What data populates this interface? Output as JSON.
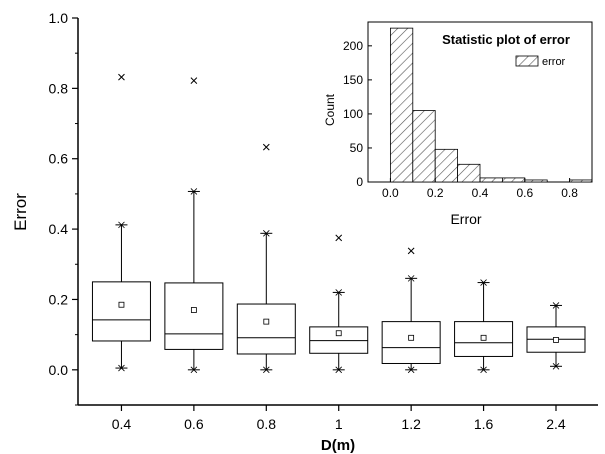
{
  "chart_data": [
    {
      "type": "box",
      "xlabel": "D(m)",
      "ylabel": "Error",
      "ylim": [
        -0.1,
        1.0
      ],
      "yticks": [
        "0.0",
        "0.2",
        "0.4",
        "0.6",
        "0.8",
        "1.0"
      ],
      "categories": [
        "0.4",
        "0.6",
        "0.8",
        "1",
        "1.2",
        "1.6",
        "2.4"
      ],
      "boxes": [
        {
          "min": 0.005,
          "q1": 0.082,
          "median": 0.142,
          "q3": 0.25,
          "max": 0.412,
          "mean": 0.185,
          "outliers": [
            0.832
          ]
        },
        {
          "min": 0.0,
          "q1": 0.058,
          "median": 0.102,
          "q3": 0.247,
          "max": 0.507,
          "mean": 0.17,
          "outliers": [
            0.822
          ]
        },
        {
          "min": 0.0,
          "q1": 0.045,
          "median": 0.091,
          "q3": 0.187,
          "max": 0.388,
          "mean": 0.137,
          "outliers": [
            0.633
          ]
        },
        {
          "min": 0.0,
          "q1": 0.047,
          "median": 0.083,
          "q3": 0.122,
          "max": 0.22,
          "mean": 0.104,
          "outliers": [
            0.375
          ]
        },
        {
          "min": 0.0,
          "q1": 0.018,
          "median": 0.063,
          "q3": 0.137,
          "max": 0.26,
          "mean": 0.091,
          "outliers": [
            0.338
          ]
        },
        {
          "min": 0.0,
          "q1": 0.038,
          "median": 0.077,
          "q3": 0.137,
          "max": 0.248,
          "mean": 0.091,
          "outliers": []
        },
        {
          "min": 0.01,
          "q1": 0.05,
          "median": 0.087,
          "q3": 0.122,
          "max": 0.183,
          "mean": 0.085,
          "outliers": []
        }
      ],
      "grid": false
    },
    {
      "type": "bar",
      "title": "Statistic plot of error",
      "xlabel": "Error",
      "ylabel": "Count",
      "xlim": [
        -0.1,
        0.9
      ],
      "ylim": [
        0,
        235
      ],
      "xticks": [
        "0.0",
        "0.2",
        "0.4",
        "0.6",
        "0.8"
      ],
      "yticks": [
        "0",
        "50",
        "100",
        "150",
        "200"
      ],
      "bin_width": 0.1,
      "bins": [
        0.0,
        0.1,
        0.2,
        0.3,
        0.4,
        0.5,
        0.6,
        0.7,
        0.8
      ],
      "values": [
        226,
        105,
        48,
        26,
        6,
        6,
        3,
        0,
        3
      ],
      "series": [
        {
          "name": "error"
        }
      ],
      "legend_position": "top-right"
    }
  ]
}
